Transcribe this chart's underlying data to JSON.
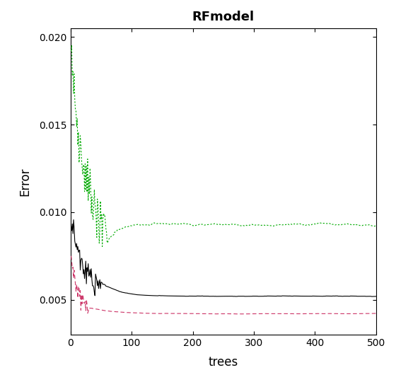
{
  "title": "RFmodel",
  "xlabel": "trees",
  "ylabel": "Error",
  "xlim": [
    0,
    500
  ],
  "ylim": [
    0.003,
    0.0205
  ],
  "yticks": [
    0.005,
    0.01,
    0.015,
    0.02
  ],
  "xticks": [
    0,
    100,
    200,
    300,
    400,
    500
  ],
  "background_color": "#ffffff",
  "n_trees": 500,
  "seed": 7,
  "oob_color": "#000000",
  "class0_color": "#cc3366",
  "class1_color": "#00aa00",
  "oob_lw": 0.8,
  "class0_lw": 0.8,
  "class1_lw": 0.8
}
